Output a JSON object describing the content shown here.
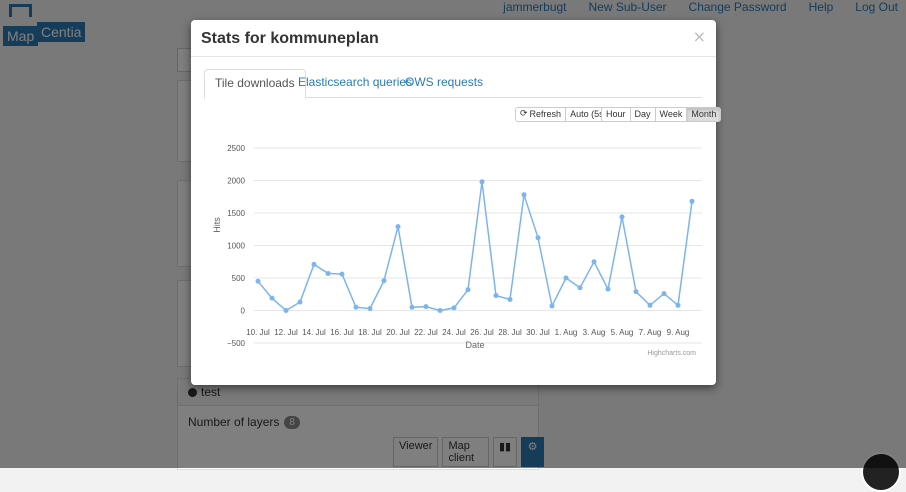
{
  "logo": {
    "word1": "Map",
    "word2": "Centia"
  },
  "topnav": [
    "jammerbugt",
    "New Sub-User",
    "Change Password",
    "Help",
    "Log Out"
  ],
  "background": {
    "card_title": "test",
    "layers_label": "Number of layers",
    "layers_count": "8",
    "viewer_label": "Viewer",
    "map_client_label": "Map client"
  },
  "modal": {
    "title": "Stats for kommuneplan",
    "close": "×",
    "tabs": [
      "Tile downloads",
      "Elasticsearch queries",
      "OWS requests"
    ],
    "active_tab": 0,
    "controls": {
      "refresh": "Refresh",
      "auto": "Auto (5s)"
    },
    "ranges": [
      "Hour",
      "Day",
      "Week",
      "Month"
    ],
    "active_range": 3
  },
  "chart_data": {
    "type": "line",
    "xlabel": "Date",
    "ylabel": "Hits",
    "credits": "Highcharts.com",
    "color": "#7cb5ec",
    "ylim": [
      -500,
      2500
    ],
    "yticks": [
      -500,
      0,
      500,
      1000,
      1500,
      2000,
      2500
    ],
    "xticks": [
      "10. Jul",
      "12. Jul",
      "14. Jul",
      "16. Jul",
      "18. Jul",
      "20. Jul",
      "22. Jul",
      "24. Jul",
      "26. Jul",
      "28. Jul",
      "30. Jul",
      "1. Aug",
      "3. Aug",
      "5. Aug",
      "7. Aug",
      "9. Aug"
    ],
    "grid": true,
    "legend": "none",
    "x": [
      "10. Jul",
      "11. Jul",
      "12. Jul",
      "13. Jul",
      "14. Jul",
      "15. Jul",
      "16. Jul",
      "17. Jul",
      "18. Jul",
      "19. Jul",
      "20. Jul",
      "21. Jul",
      "22. Jul",
      "23. Jul",
      "24. Jul",
      "25. Jul",
      "26. Jul",
      "27. Jul",
      "28. Jul",
      "29. Jul",
      "30. Jul",
      "31. Jul",
      "1. Aug",
      "2. Aug",
      "3. Aug",
      "4. Aug",
      "5. Aug",
      "6. Aug",
      "7. Aug",
      "8. Aug",
      "9. Aug",
      "10. Aug"
    ],
    "values": [
      450,
      190,
      0,
      130,
      710,
      570,
      560,
      50,
      30,
      460,
      1290,
      50,
      60,
      0,
      40,
      320,
      1980,
      230,
      170,
      1780,
      1120,
      70,
      500,
      350,
      750,
      330,
      1440,
      290,
      80,
      260,
      80,
      1680
    ]
  }
}
